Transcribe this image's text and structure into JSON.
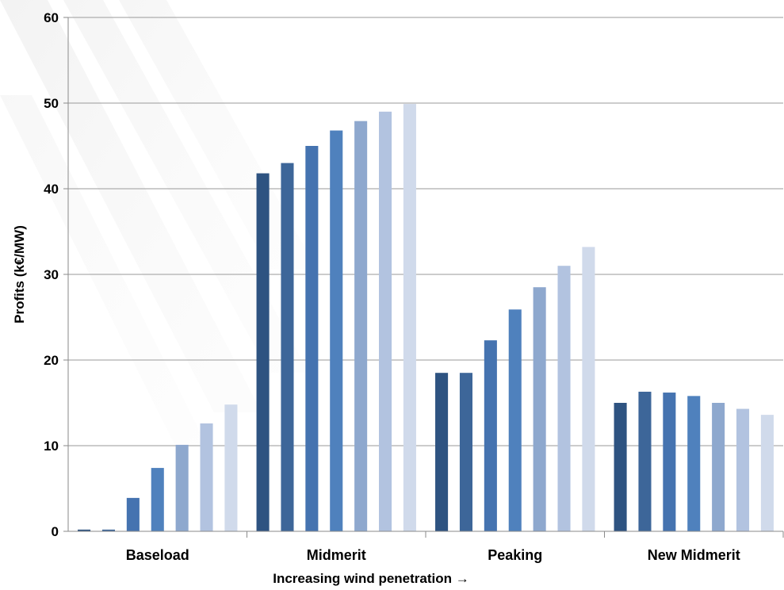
{
  "chart_data": {
    "type": "bar",
    "title": "",
    "xlabel": "Increasing wind penetration →",
    "ylabel": "Profits (k€/MW)",
    "ylim": [
      0,
      60
    ],
    "yticks": [
      "0",
      "10",
      "20",
      "30",
      "40",
      "50",
      "60"
    ],
    "grid": true,
    "categories": [
      "Baseload",
      "Midmerit",
      "Peaking",
      "New Midmerit"
    ],
    "series": [
      {
        "color": "#2E5381",
        "values": [
          0.2,
          41.8,
          18.5,
          15.0
        ]
      },
      {
        "color": "#3D6699",
        "values": [
          0.2,
          43.0,
          18.5,
          16.3
        ]
      },
      {
        "color": "#4573B0",
        "values": [
          3.9,
          45.0,
          22.3,
          16.2
        ]
      },
      {
        "color": "#4F81BD",
        "values": [
          7.4,
          46.8,
          25.9,
          15.8
        ]
      },
      {
        "color": "#8EA8CE",
        "values": [
          10.1,
          47.9,
          28.5,
          15.0
        ]
      },
      {
        "color": "#B2C3E0",
        "values": [
          12.6,
          49.0,
          31.0,
          14.3
        ]
      },
      {
        "color": "#D0DAEB",
        "values": [
          14.8,
          49.9,
          33.2,
          13.6
        ]
      }
    ]
  }
}
